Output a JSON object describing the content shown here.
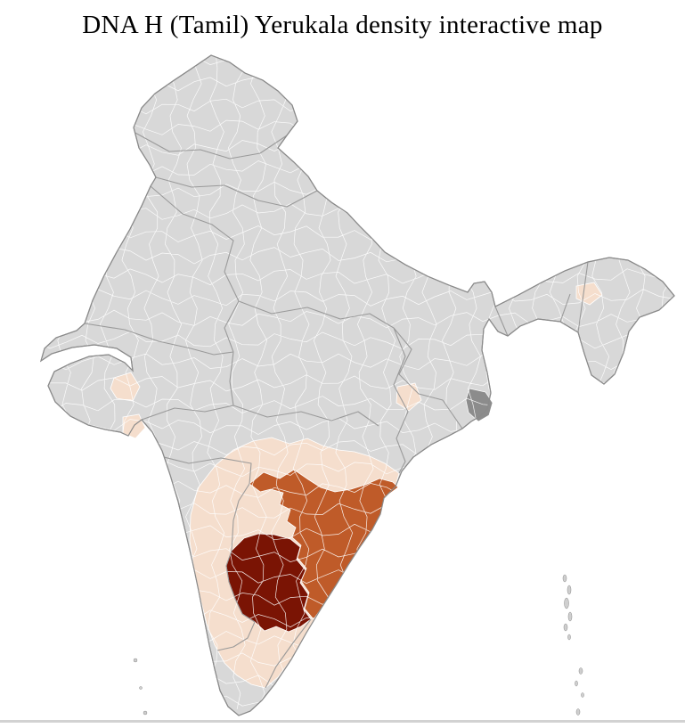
{
  "page": {
    "title": "DNA H (Tamil) Yerukala density interactive map"
  },
  "map": {
    "label": "India district-level choropleth of DNA H (Tamil) Yerukala density",
    "colors": {
      "background": "#ffffff",
      "land": "#d8d8d8",
      "district_border": "#ffffff",
      "state_border": "#979797",
      "country_outline": "#8a8a8a",
      "density_low": "#f5decd",
      "density_medium": "#bf5b29",
      "density_high": "#7a1404",
      "shaded_gray": "#8c8c8c",
      "island": "#cfcfcf"
    }
  },
  "footer": {
    "divider_color": "#d2d2d2"
  }
}
